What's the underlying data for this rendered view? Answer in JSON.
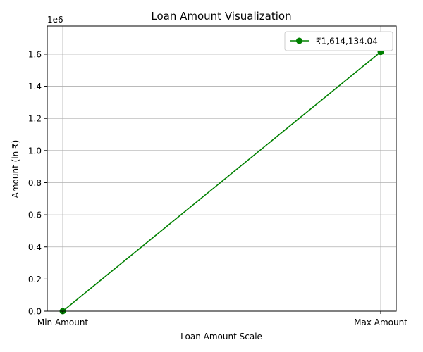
{
  "chart_data": {
    "type": "line",
    "title": "Loan Amount Visualization",
    "xlabel": "Loan Amount Scale",
    "ylabel": "Amount (in ₹)",
    "categories": [
      "Min Amount",
      "Max Amount"
    ],
    "series": [
      {
        "name": "₹1,614,134.04",
        "values": [
          0,
          1614134.04
        ],
        "color": "#008000",
        "marker": "circle"
      }
    ],
    "ylim": [
      0,
      1775000
    ],
    "y_scale_label": "1e6",
    "y_ticks": [
      0,
      200000,
      400000,
      600000,
      800000,
      1000000,
      1200000,
      1400000,
      1600000
    ],
    "y_tick_labels": [
      "0.0",
      "0.2",
      "0.4",
      "0.6",
      "0.8",
      "1.0",
      "1.2",
      "1.4",
      "1.6"
    ],
    "grid": true,
    "legend_position": "top-right"
  }
}
